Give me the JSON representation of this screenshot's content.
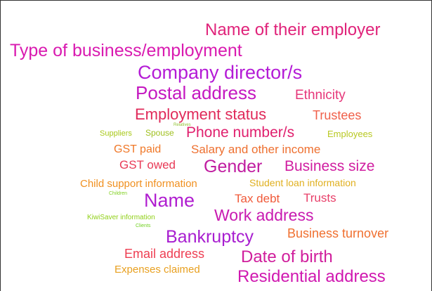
{
  "words": [
    "Name of their employer",
    "Type of business/employment",
    "Company director/s",
    "Postal address",
    "Ethnicity",
    "Employment status",
    "Trustees",
    "Relatives",
    "Suppliers",
    "Spouse",
    "Phone number/s",
    "Employees",
    "GST paid",
    "Salary and other income",
    "GST owed",
    "Gender",
    "Business size",
    "Child support information",
    "Student loan information",
    "Children",
    "Name",
    "Tax debt",
    "Trusts",
    "KiwiSaver information",
    "Work address",
    "Clients",
    "Bankruptcy",
    "Business turnover",
    "Email address",
    "Date of birth",
    "Expenses claimed",
    "Residential address"
  ]
}
